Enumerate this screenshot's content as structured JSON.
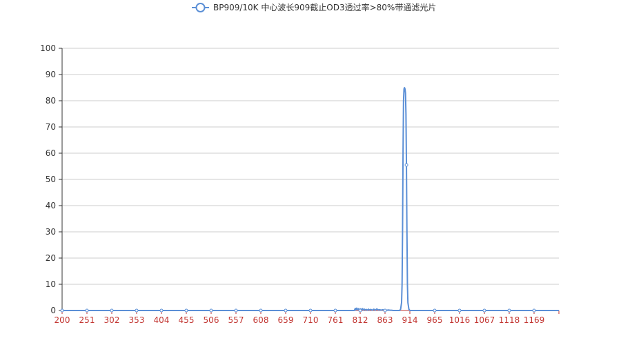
{
  "chart_data": {
    "type": "line",
    "title": "",
    "xlabel": "",
    "ylabel": "",
    "xlim": [
      200,
      1220
    ],
    "ylim": [
      0,
      100
    ],
    "x_ticks": [
      200,
      251,
      302,
      353,
      404,
      455,
      506,
      557,
      608,
      659,
      710,
      761,
      812,
      863,
      914,
      965,
      1016,
      1067,
      1118,
      1169
    ],
    "y_ticks": [
      0,
      10,
      20,
      30,
      40,
      50,
      60,
      70,
      80,
      90,
      100
    ],
    "grid": "horizontal",
    "legend_position": "top-center",
    "series": [
      {
        "name": "BP909/10K 中心波长909截止OD3透过率>80%带通滤光片",
        "color": "#5b8fd6",
        "points": [
          [
            200,
            0
          ],
          [
            251,
            0
          ],
          [
            302,
            0
          ],
          [
            353,
            0
          ],
          [
            404,
            0
          ],
          [
            455,
            0
          ],
          [
            506,
            0
          ],
          [
            557,
            0
          ],
          [
            608,
            0
          ],
          [
            659,
            0
          ],
          [
            710,
            0
          ],
          [
            761,
            0
          ],
          [
            800,
            0
          ],
          [
            802,
            0.8
          ],
          [
            803,
            0.2
          ],
          [
            805,
            0.9
          ],
          [
            807,
            0.3
          ],
          [
            809,
            0.7
          ],
          [
            811,
            0.1
          ],
          [
            813,
            0.6
          ],
          [
            815,
            0.2
          ],
          [
            817,
            0.7
          ],
          [
            819,
            0.1
          ],
          [
            821,
            0.5
          ],
          [
            823,
            0.2
          ],
          [
            825,
            0.4
          ],
          [
            827,
            0.1
          ],
          [
            829,
            0.5
          ],
          [
            831,
            0.2
          ],
          [
            834,
            0.4
          ],
          [
            837,
            0.1
          ],
          [
            840,
            0.5
          ],
          [
            843,
            0.1
          ],
          [
            846,
            0.6
          ],
          [
            849,
            0.2
          ],
          [
            852,
            0.3
          ],
          [
            855,
            0.1
          ],
          [
            858,
            0.3
          ],
          [
            861,
            0.1
          ],
          [
            864,
            0.2
          ],
          [
            867,
            0.1
          ],
          [
            870,
            0.2
          ],
          [
            873,
            0.1
          ],
          [
            876,
            0.1
          ],
          [
            880,
            0
          ],
          [
            893,
            0
          ],
          [
            895,
            0.5
          ],
          [
            897,
            3
          ],
          [
            898,
            10
          ],
          [
            899,
            30
          ],
          [
            900,
            60
          ],
          [
            901,
            80
          ],
          [
            902,
            84.5
          ],
          [
            903,
            85
          ],
          [
            904,
            84.5
          ],
          [
            905,
            83
          ],
          [
            906,
            75
          ],
          [
            907,
            55.5
          ],
          [
            908,
            30
          ],
          [
            909,
            10
          ],
          [
            910,
            3
          ],
          [
            912,
            0.5
          ],
          [
            914,
            0
          ],
          [
            965,
            0
          ],
          [
            1016,
            0
          ],
          [
            1067,
            0
          ],
          [
            1118,
            0
          ],
          [
            1169,
            0
          ],
          [
            1220,
            0
          ]
        ],
        "markers": [
          [
            200,
            0
          ],
          [
            251,
            0
          ],
          [
            302,
            0
          ],
          [
            353,
            0
          ],
          [
            404,
            0
          ],
          [
            455,
            0
          ],
          [
            506,
            0
          ],
          [
            557,
            0
          ],
          [
            608,
            0
          ],
          [
            659,
            0
          ],
          [
            710,
            0
          ],
          [
            761,
            0
          ],
          [
            812,
            0
          ],
          [
            863,
            0
          ],
          [
            907,
            55.5
          ],
          [
            965,
            0
          ],
          [
            1016,
            0
          ],
          [
            1067,
            0
          ],
          [
            1118,
            0
          ],
          [
            1169,
            0
          ]
        ]
      }
    ]
  }
}
